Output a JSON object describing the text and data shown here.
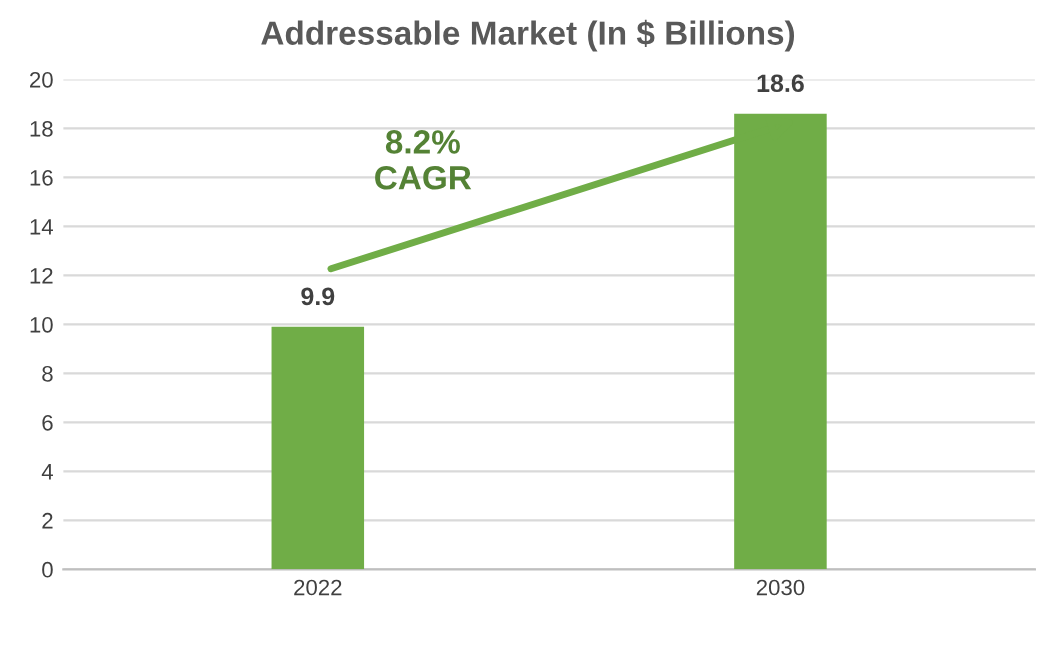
{
  "chart_data": {
    "type": "bar",
    "title": "Addressable Market (In $ Billions)",
    "categories": [
      "2022",
      "2030"
    ],
    "values": [
      9.9,
      18.6
    ],
    "color": "#70ad47",
    "ylim": [
      0,
      20
    ],
    "yticks": [
      0,
      2,
      4,
      6,
      8,
      10,
      12,
      14,
      16,
      18,
      20
    ],
    "grid": "y",
    "data_labels": true,
    "annotations": [
      "8.2%\nCAGR"
    ]
  }
}
